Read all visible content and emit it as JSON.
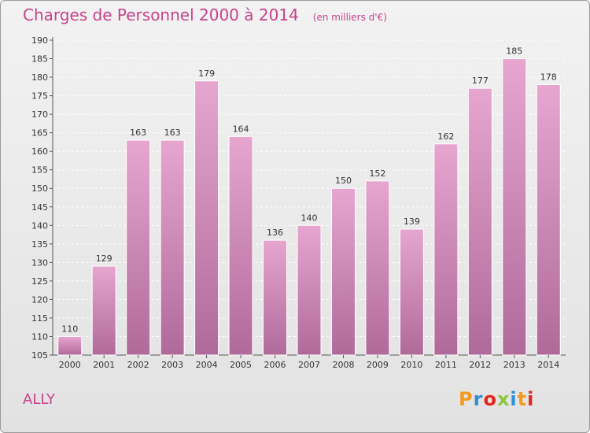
{
  "header": {
    "title": "Charges de Personnel 2000 à 2014",
    "subtitle": "(en milliers d'€)"
  },
  "footer": {
    "commune": "ALLY",
    "logo_text": "Proxiti"
  },
  "colors": {
    "title": "#c8418c",
    "bar_top": "#e6a6d0",
    "bar_bottom": "#b06a9a",
    "axis": "#555555",
    "grid": "#ffffff",
    "logo": [
      "#f29a1e",
      "#2e8fd1",
      "#e2261b",
      "#8cc63e",
      "#2e8fd1",
      "#f29a1e",
      "#e2261b"
    ]
  },
  "chart_data": {
    "type": "bar",
    "title": "Charges de Personnel 2000 à 2014",
    "subtitle": "(en milliers d'€)",
    "xlabel": "",
    "ylabel": "",
    "categories": [
      "2000",
      "2001",
      "2002",
      "2003",
      "2004",
      "2005",
      "2006",
      "2007",
      "2008",
      "2009",
      "2010",
      "2011",
      "2012",
      "2013",
      "2014"
    ],
    "values": [
      110,
      129,
      163,
      163,
      179,
      164,
      136,
      140,
      150,
      152,
      139,
      162,
      177,
      185,
      178
    ],
    "ylim": [
      105,
      190
    ],
    "yticks": [
      105,
      110,
      115,
      120,
      125,
      130,
      135,
      140,
      145,
      150,
      155,
      160,
      165,
      170,
      175,
      180,
      185,
      190
    ],
    "grid": true,
    "data_labels": true
  }
}
